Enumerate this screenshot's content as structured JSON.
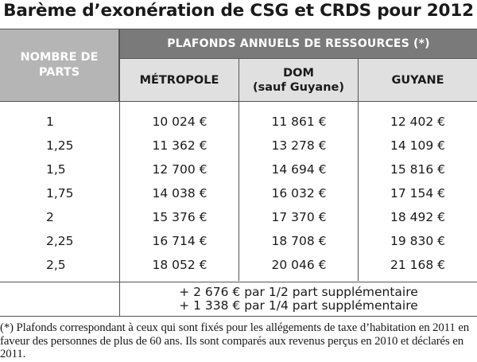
{
  "title": "Barème d’exonération de CSG et CRDS pour 2012",
  "header": {
    "parts_label": "NOMBRE DE PARTS",
    "ceilings_label": "PLAFONDS ANNUELS DE RESSOURCES (*)",
    "columns": [
      {
        "line1": "MÉTROPOLE",
        "line2": ""
      },
      {
        "line1": "DOM",
        "line2": "(sauf Guyane)"
      },
      {
        "line1": "GUYANE",
        "line2": ""
      }
    ]
  },
  "rows": [
    {
      "parts": "1",
      "metropole": "10 024 €",
      "dom": "11 861 €",
      "guyane": "12 402 €"
    },
    {
      "parts": "1,25",
      "metropole": "11 362 €",
      "dom": "13 278 €",
      "guyane": "14 109 €"
    },
    {
      "parts": "1,5",
      "metropole": "12 700 €",
      "dom": "14 694 €",
      "guyane": "15 816 €"
    },
    {
      "parts": "1,75",
      "metropole": "14 038 €",
      "dom": "16 032 €",
      "guyane": "17 154 €"
    },
    {
      "parts": "2",
      "metropole": "15 376 €",
      "dom": "17 370 €",
      "guyane": "18 492 €"
    },
    {
      "parts": "2,25",
      "metropole": "16 714 €",
      "dom": "18 708 €",
      "guyane": "19 830 €"
    },
    {
      "parts": "2,5",
      "metropole": "18 052 €",
      "dom": "20 046 €",
      "guyane": "21 168 €"
    }
  ],
  "extra": {
    "half_part": "+ 2 676 € par 1/2 part supplémentaire",
    "quarter_part": "+ 1 338 € par 1/4 part supplémentaire"
  },
  "footnote": "(*) Plafonds correspondant à ceux qui sont fixés pour les allégements de taxe d’habitation en 2011 en faveur des personnes de plus de 60 ans. Ils sont comparés aux revenus perçus en 2010 et déclarés en 2011.",
  "colors": {
    "header_dark": "#7a7a7a",
    "header_mid": "#b5b5b5",
    "header_light": "#e0e0e0"
  }
}
